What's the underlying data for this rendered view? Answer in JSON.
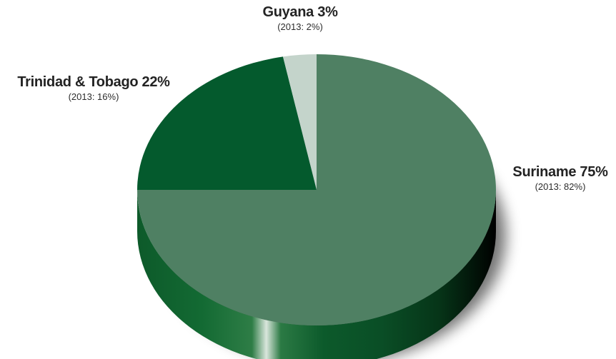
{
  "chart_data": {
    "type": "pie",
    "start_angle_deg": 0,
    "direction": "clockwise",
    "slices": [
      {
        "name": "Suriname",
        "value": 75,
        "label": "Suriname 75%",
        "sublabel": "(2013: 82%)",
        "color": "#4f8063",
        "side_color": "#0f5b2c"
      },
      {
        "name": "Trinidad & Tobago",
        "value": 22,
        "label": "Trinidad & Tobago 22%",
        "sublabel": "(2013: 16%)",
        "color": "#045a2d",
        "side_color": "#034a24"
      },
      {
        "name": "Guyana",
        "value": 3,
        "label": "Guyana 3%",
        "sublabel": "(2013: 2%)",
        "color": "#c4d4cb",
        "side_color": "#b5c9bc"
      }
    ]
  }
}
